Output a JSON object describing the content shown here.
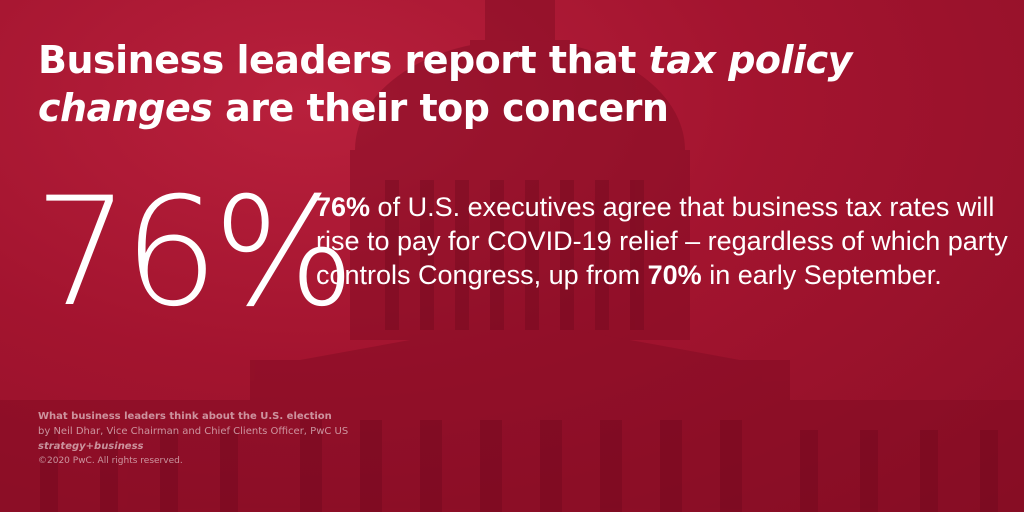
{
  "headline": {
    "part1": "Business leaders report that ",
    "emphasis": "tax policy changes",
    "part2": " are their top concern"
  },
  "stat": {
    "big_value": "76%",
    "desc_lead_bold": "76%",
    "desc_part1": " of U.S. executives agree that business tax rates will rise to pay for COVID-19 relief – regardless of which party controls Congress, up from ",
    "desc_bold2": "70%",
    "desc_part2": " in early September."
  },
  "credits": {
    "source_title": "What business leaders think about the U.S. election",
    "byline": "by Neil Dhar, Vice Chairman and Chief Clients Officer, PwC US",
    "publication": "strategy+business",
    "copyright": "©2020 PwC. All rights reserved."
  },
  "colors": {
    "background": "#a3142f",
    "text": "#ffffff"
  }
}
